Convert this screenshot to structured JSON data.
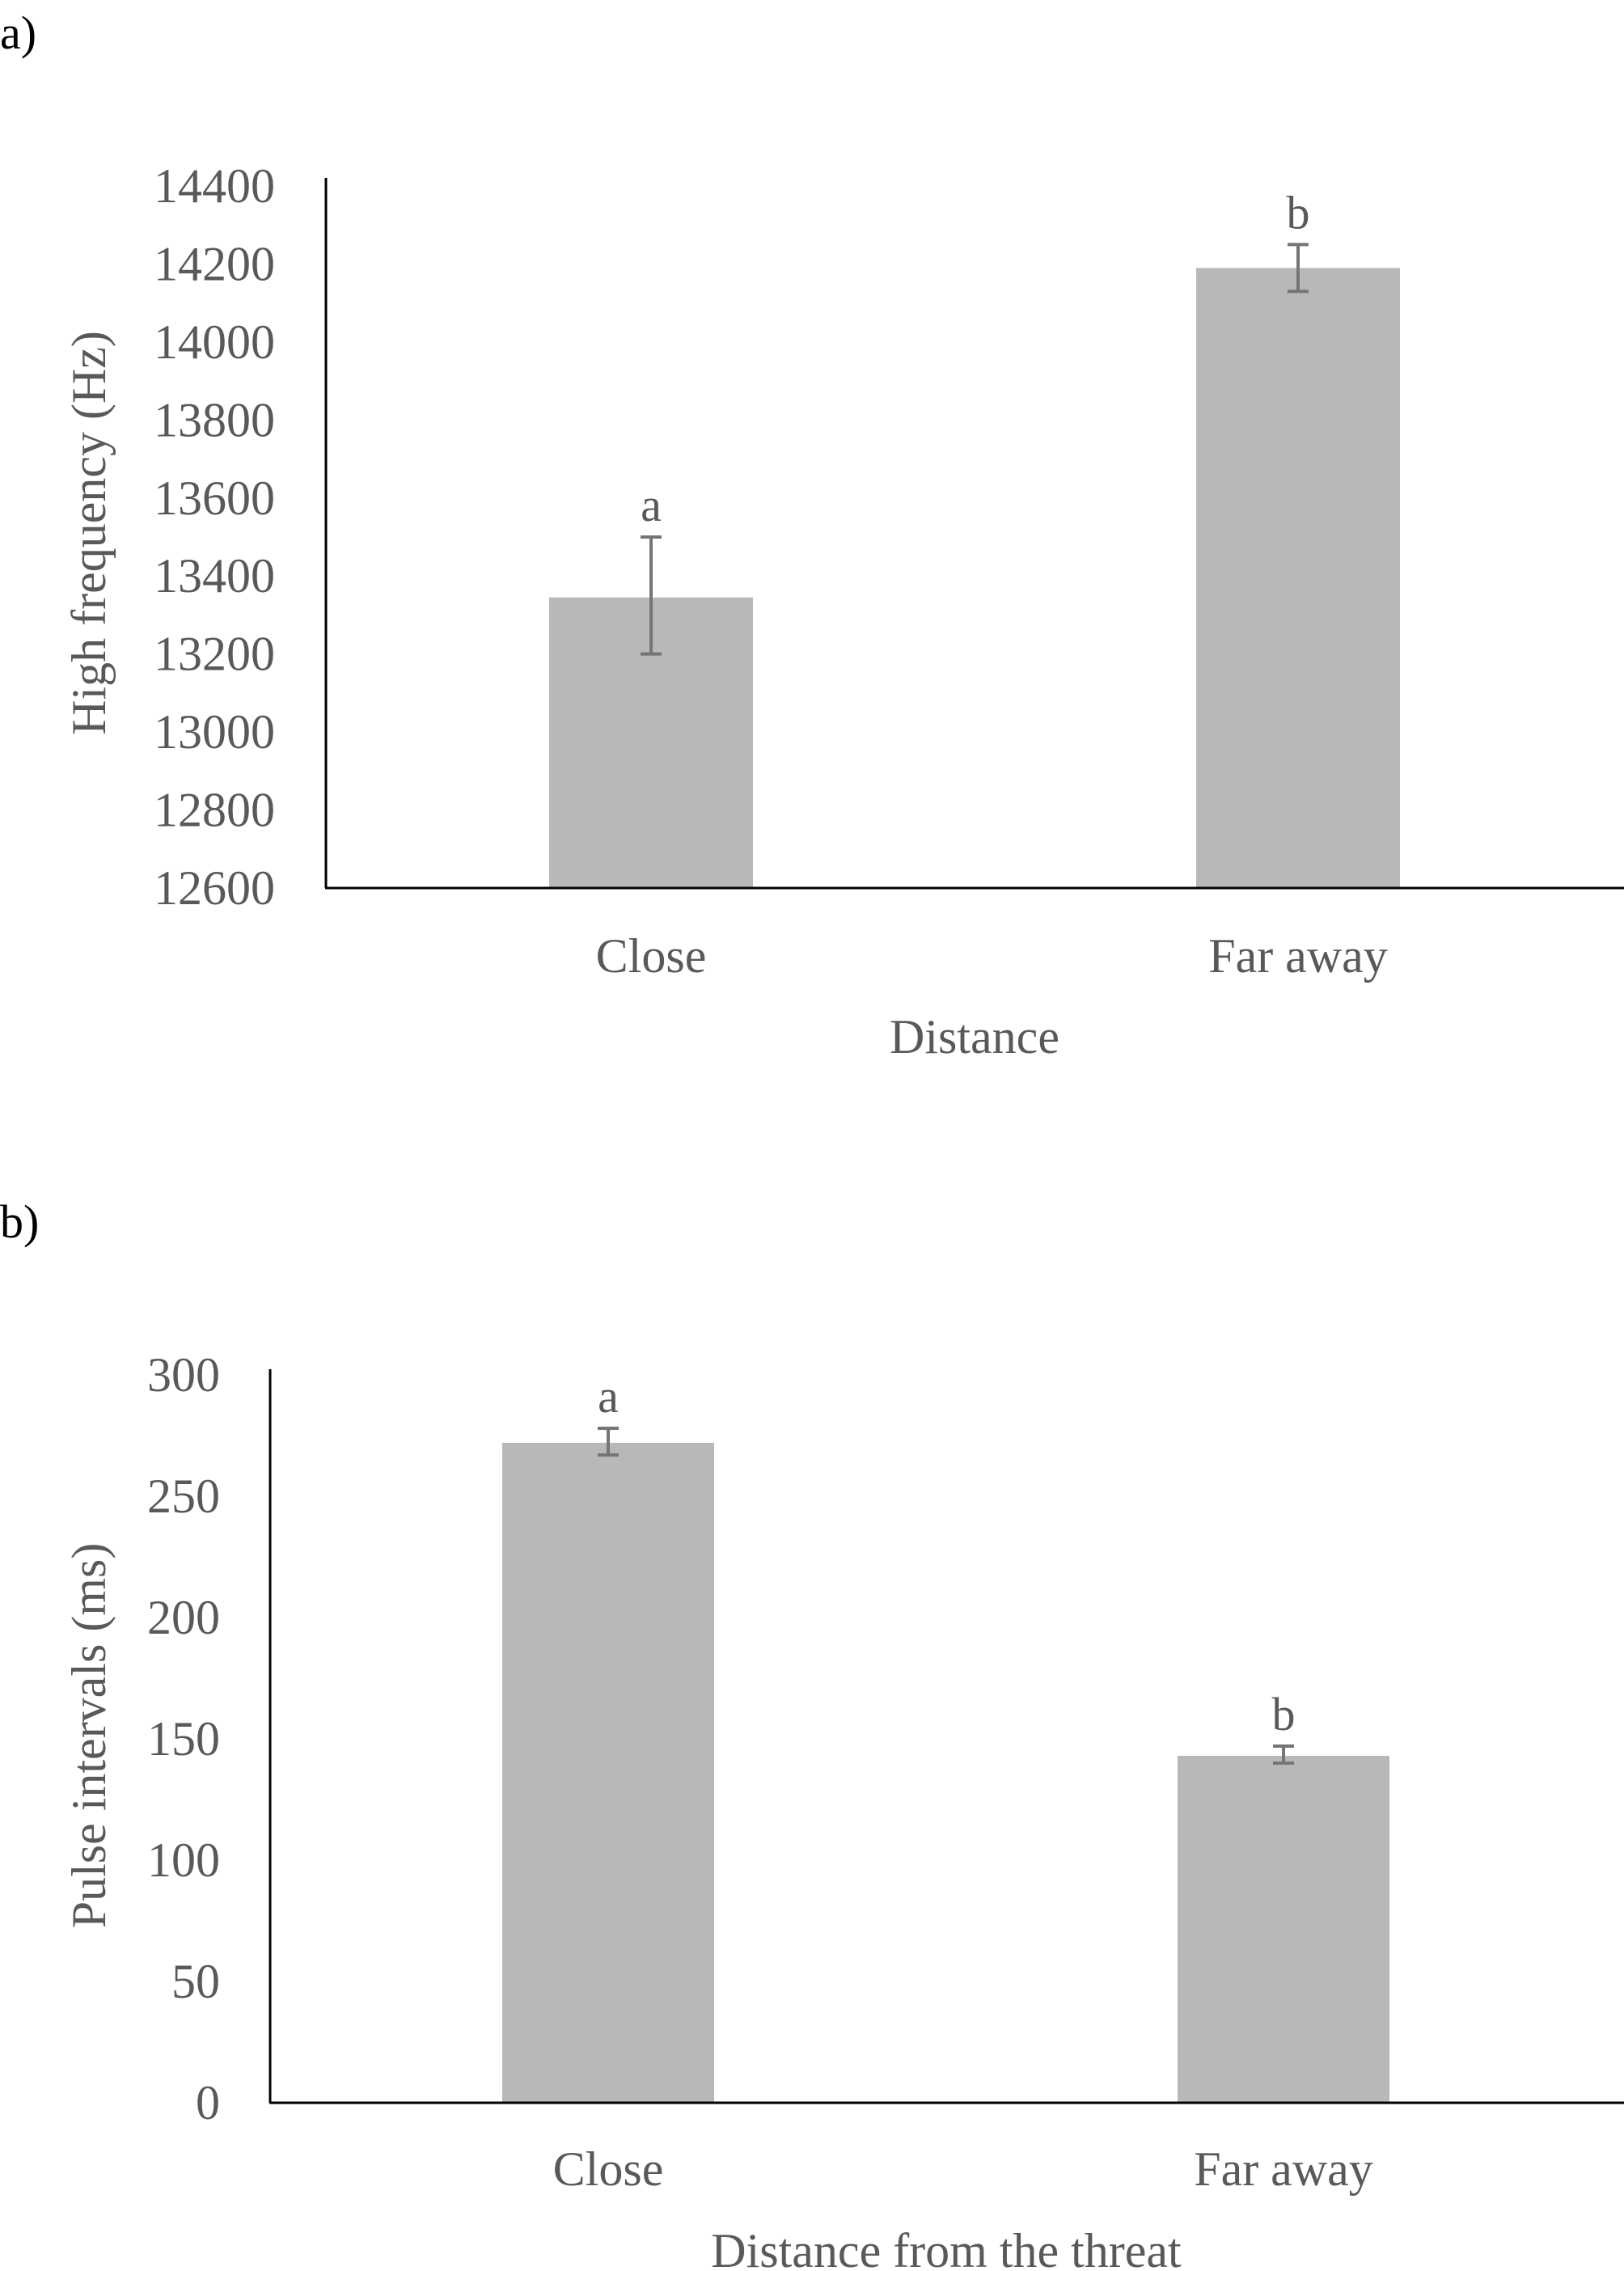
{
  "colors": {
    "bar": "#b8b8b8",
    "axis": "#000000",
    "text": "#595959",
    "error_bar": "#757575"
  },
  "chart_data": [
    {
      "panel_label": "a)",
      "type": "bar",
      "title": "",
      "xlabel": "Distance",
      "ylabel": "High frequency (Hz)",
      "categories": [
        "Close",
        "Far away"
      ],
      "values": [
        13345,
        14190
      ],
      "error_low": [
        13200,
        14130
      ],
      "error_high": [
        13500,
        14250
      ],
      "significance": [
        "a",
        "b"
      ],
      "ylim": [
        12600,
        14400
      ],
      "yticks": [
        "12600",
        "12800",
        "13000",
        "13200",
        "13400",
        "13600",
        "13800",
        "14000",
        "14200",
        "14400"
      ],
      "grid": false,
      "legend": "none"
    },
    {
      "panel_label": "b)",
      "type": "bar",
      "title": "",
      "xlabel": "Distance from the threat",
      "ylabel": "Pulse intervals (ms)",
      "categories": [
        "Close",
        "Far away"
      ],
      "values": [
        272,
        143
      ],
      "error_low": [
        267,
        140
      ],
      "error_high": [
        278,
        147
      ],
      "significance": [
        "a",
        "b"
      ],
      "ylim": [
        0,
        300
      ],
      "yticks": [
        "0",
        "50",
        "100",
        "150",
        "200",
        "250",
        "300"
      ],
      "grid": false,
      "legend": "none"
    }
  ]
}
